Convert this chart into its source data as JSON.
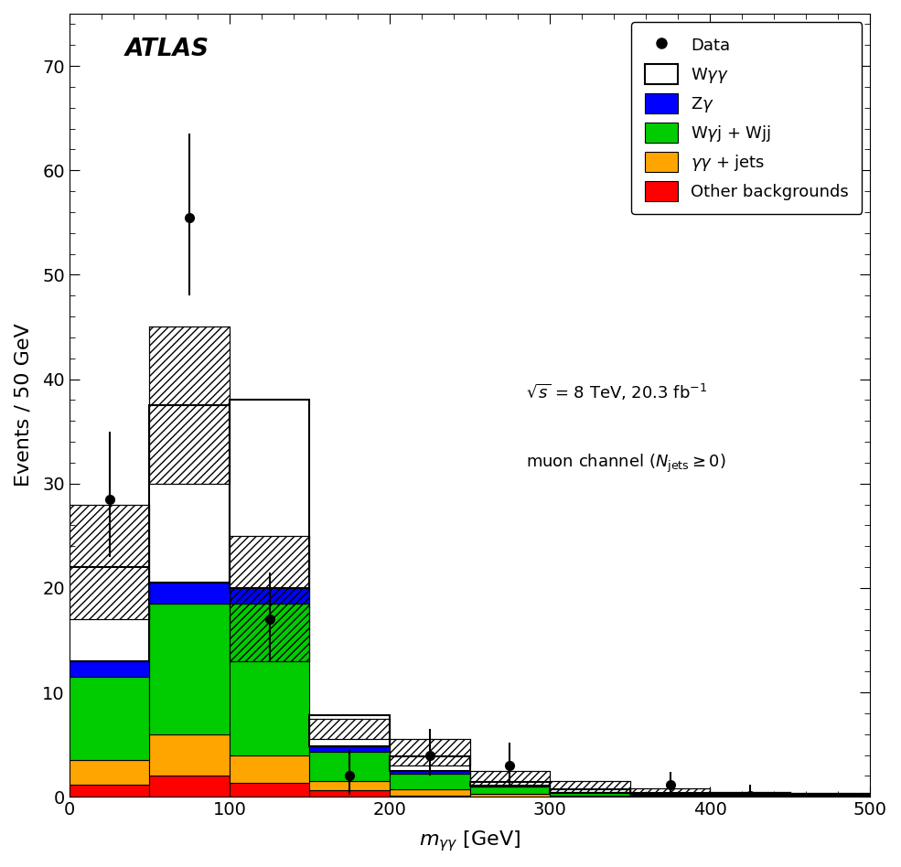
{
  "bin_edges": [
    0,
    50,
    100,
    150,
    200,
    250,
    300,
    350,
    400,
    450,
    500
  ],
  "bin_width": 50,
  "other_backgrounds": [
    1.2,
    2.0,
    1.3,
    0.6,
    0.15,
    0.05,
    0.05,
    0.05,
    0.05,
    0.05
  ],
  "gg_jets": [
    2.3,
    4.0,
    2.7,
    0.9,
    0.6,
    0.2,
    0.1,
    0.05,
    0.05,
    0.05
  ],
  "Wgj_Wjj": [
    8.0,
    12.5,
    14.5,
    2.8,
    1.5,
    0.7,
    0.2,
    0.1,
    0.1,
    0.05
  ],
  "Zg": [
    1.5,
    2.0,
    1.5,
    0.5,
    0.2,
    0.1,
    0.05,
    0.05,
    0.05,
    0.05
  ],
  "Wgg": [
    9.0,
    17.0,
    18.0,
    3.0,
    1.4,
    0.4,
    0.3,
    0.1,
    0.1,
    0.05
  ],
  "hatch_upper": [
    28.0,
    45.0,
    25.0,
    7.5,
    5.5,
    2.5,
    1.5,
    0.8,
    0.5,
    0.4
  ],
  "hatch_lower": [
    17.0,
    30.0,
    13.0,
    5.5,
    3.0,
    1.0,
    0.5,
    0.2,
    0.15,
    0.1
  ],
  "data_x": [
    25,
    75,
    125,
    175,
    225,
    275,
    375,
    425
  ],
  "data_y": [
    28.5,
    55.5,
    17.0,
    2.0,
    4.0,
    3.0,
    1.2,
    0.15
  ],
  "data_yerr_up": [
    6.5,
    8.0,
    4.5,
    2.5,
    2.5,
    2.2,
    1.2,
    1.0
  ],
  "data_yerr_down": [
    5.5,
    7.5,
    4.0,
    1.8,
    2.0,
    1.8,
    1.1,
    0.5
  ],
  "color_other": "#ff0000",
  "color_gg_jets": "#ffa500",
  "color_wgj": "#00cc00",
  "color_zg": "#0000ff",
  "color_wgg": "#ffffff",
  "xlim": [
    0,
    500
  ],
  "ylim": [
    0,
    75
  ],
  "yticks": [
    0,
    10,
    20,
    30,
    40,
    50,
    60,
    70
  ],
  "xticks": [
    0,
    100,
    200,
    300,
    400,
    500
  ],
  "ylabel": "Events / 50 GeV"
}
